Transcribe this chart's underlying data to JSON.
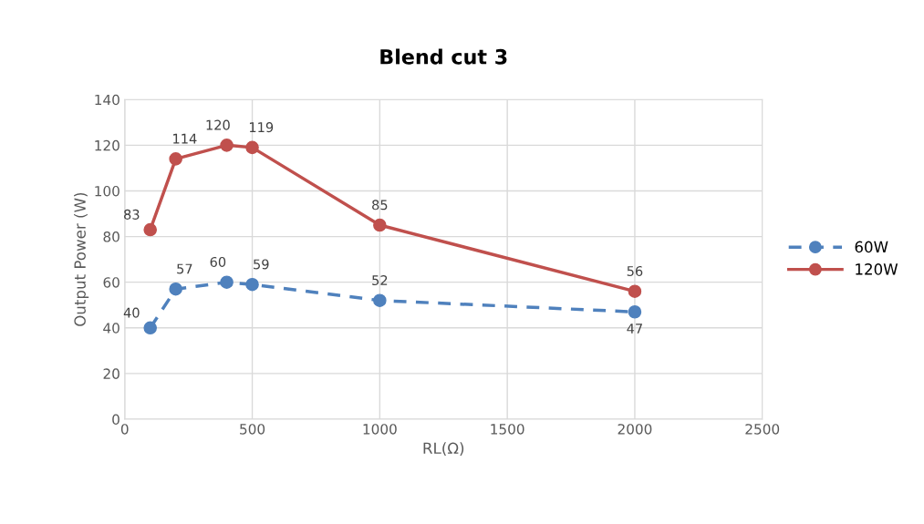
{
  "chart_data": {
    "type": "line",
    "title": "Blend cut 3",
    "xlabel": "RL(Ω)",
    "ylabel": "Output Power (W)",
    "x": [
      100,
      200,
      400,
      500,
      1000,
      2000
    ],
    "series": [
      {
        "name": "60W",
        "color": "#4f81bd",
        "values": [
          40,
          57,
          60,
          59,
          52,
          47
        ],
        "line_style": "dashed"
      },
      {
        "name": "120W",
        "color": "#c0504d",
        "values": [
          83,
          114,
          120,
          119,
          85,
          56
        ],
        "line_style": "solid"
      }
    ],
    "xlim": [
      0,
      2500
    ],
    "xticks": [
      0,
      500,
      1000,
      1500,
      2000,
      2500
    ],
    "ylim": [
      0,
      140
    ],
    "yticks": [
      0,
      20,
      40,
      60,
      80,
      100,
      120,
      140
    ],
    "grid": true,
    "legend": "right",
    "marker": "circle",
    "data_labels": true
  }
}
